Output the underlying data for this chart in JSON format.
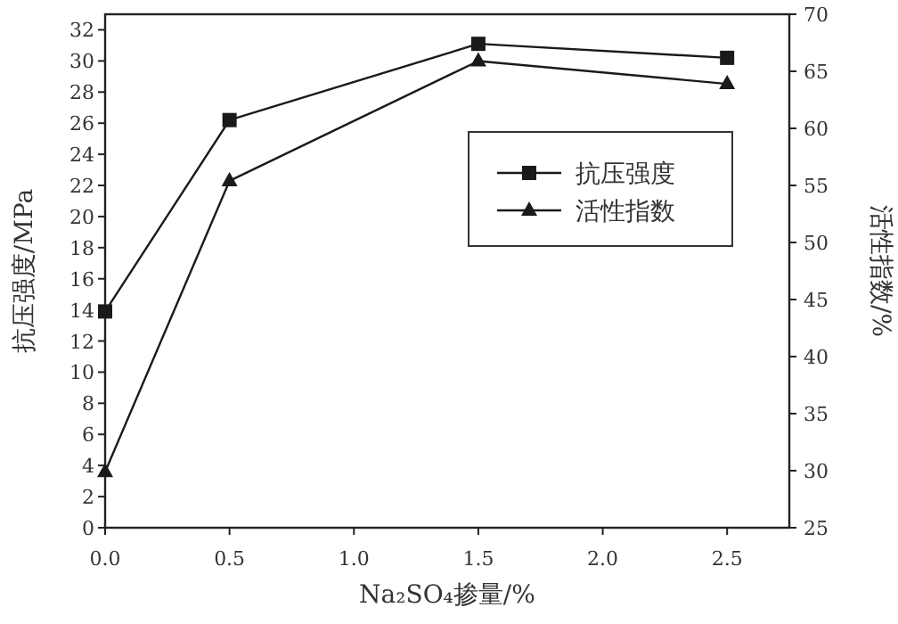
{
  "chart_data": {
    "type": "line",
    "xlabel": "Na₂SO₄掺量/%",
    "ylabel": "抗压强度/MPa",
    "y2label": "活性指数/%",
    "x": [
      0,
      0.5,
      1.5,
      2.5
    ],
    "series": [
      {
        "name": "抗压强度",
        "color": "#1a1a1a",
        "marker": "square",
        "values": [
          13.9,
          26.2,
          31.1,
          30.2
        ]
      },
      {
        "name": "活性指数",
        "color": "#1a1a1a",
        "marker": "triangle",
        "axis": "y2",
        "values": [
          29.9,
          55.4,
          65.9,
          63.9
        ]
      }
    ],
    "xlim": [
      0,
      2.75
    ],
    "xticks": [
      {
        "value": 0,
        "label": "0.0"
      },
      0.5,
      {
        "value": 1,
        "label": "1.0"
      },
      1.5,
      {
        "value": 2,
        "label": "2.0"
      },
      2.5
    ],
    "ylim": [
      0,
      33
    ],
    "yticks": [
      0,
      2,
      4,
      6,
      8,
      10,
      12,
      14,
      16,
      18,
      20,
      22,
      24,
      26,
      28,
      30,
      32
    ],
    "y2lim": [
      25,
      70
    ],
    "y2ticks": [
      25,
      30,
      35,
      40,
      45,
      50,
      55,
      60,
      65,
      70
    ],
    "legend": "top right",
    "grid": false,
    "line_style": "solid"
  }
}
